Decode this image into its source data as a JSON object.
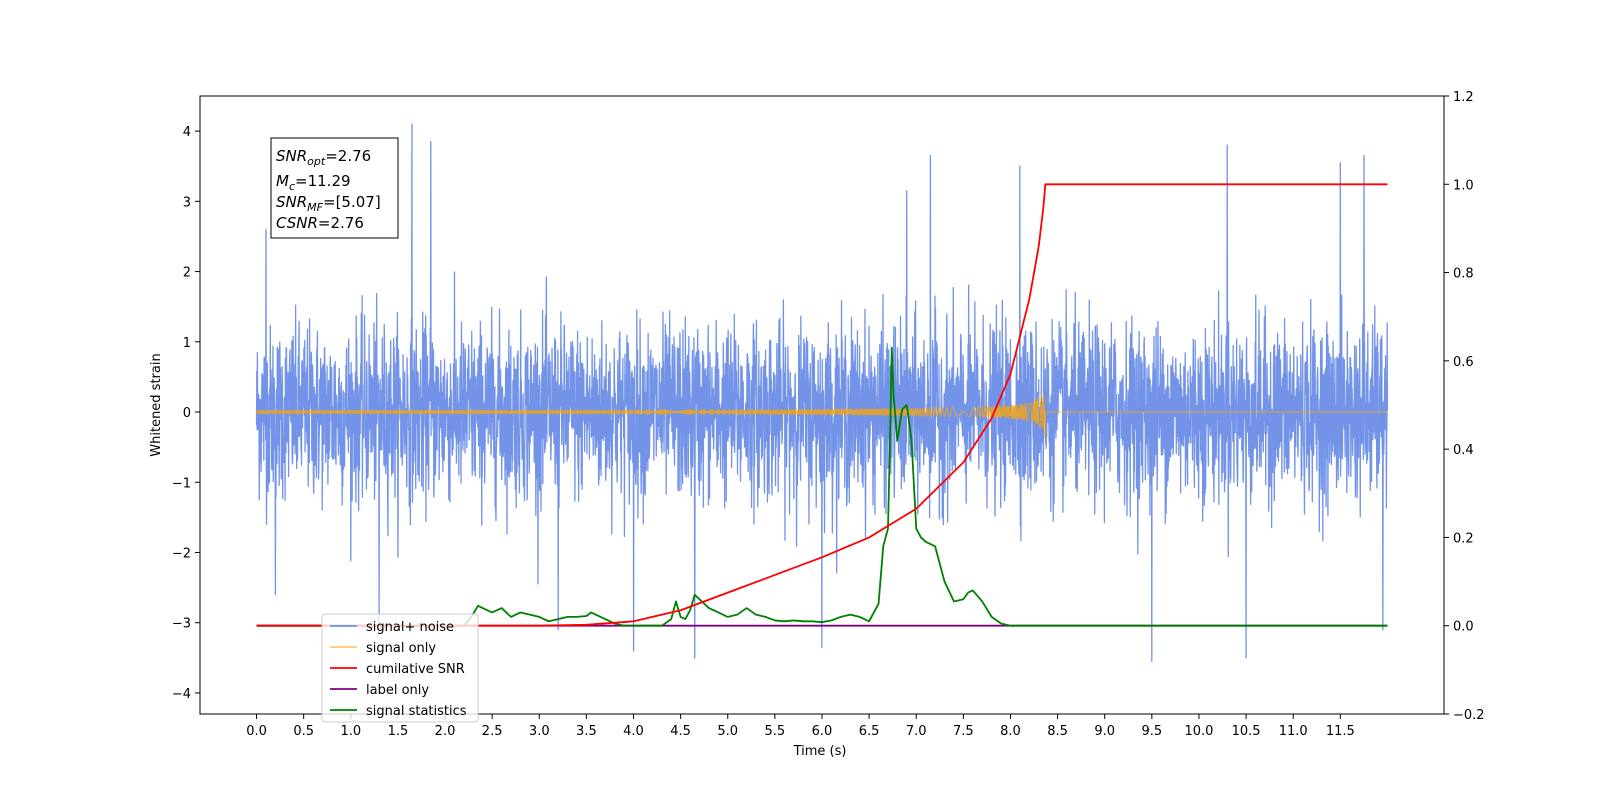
{
  "chart_data": {
    "type": "line",
    "xlabel": "Time (s)",
    "ylabel": "Whitened strain",
    "xlim": [
      -0.6,
      12.6
    ],
    "ylim": [
      -4.3,
      4.5
    ],
    "ylim_right": [
      -0.2,
      1.2
    ],
    "x_ticks": [
      0.0,
      0.5,
      1.0,
      1.5,
      2.0,
      2.5,
      3.0,
      3.5,
      4.0,
      4.5,
      5.0,
      5.5,
      6.0,
      6.5,
      7.0,
      7.5,
      8.0,
      8.5,
      9.0,
      9.5,
      10.0,
      10.5,
      11.0,
      11.5
    ],
    "x_tick_labels": [
      "0.0",
      "0.5",
      "1.0",
      "1.5",
      "2.0",
      "2.5",
      "3.0",
      "3.5",
      "4.0",
      "4.5",
      "5.0",
      "5.5",
      "6.0",
      "6.5",
      "7.0",
      "7.5",
      "8.0",
      "8.5",
      "9.0",
      "9.5",
      "10.0",
      "10.5",
      "11.0",
      "11.5"
    ],
    "y_ticks": [
      -4,
      -3,
      -2,
      -1,
      0,
      1,
      2,
      3,
      4
    ],
    "y_tick_labels": [
      "−4",
      "−3",
      "−2",
      "−1",
      "0",
      "1",
      "2",
      "3",
      "4"
    ],
    "y_ticks_right": [
      -0.2,
      0.0,
      0.2,
      0.4,
      0.6,
      0.8,
      1.0,
      1.2
    ],
    "y_tick_labels_right": [
      "−0.2",
      "0.0",
      "0.2",
      "0.4",
      "0.6",
      "0.8",
      "1.0",
      "1.2"
    ],
    "annotation": {
      "snr_opt": "2.76",
      "mc": "11.29",
      "snr_mf": "[5.07]",
      "csnr": "2.76"
    },
    "legend_position": "lower-left",
    "series": [
      {
        "name": "signal+ noise",
        "axis": "left",
        "color": "#7293e8",
        "style": "noise",
        "x_range": [
          0.0,
          12.0
        ],
        "typical_range": [
          -1.4,
          1.4
        ],
        "spikes": [
          {
            "x": 0.1,
            "y": 2.6
          },
          {
            "x": 0.2,
            "y": -2.6
          },
          {
            "x": 1.3,
            "y": -3.1
          },
          {
            "x": 1.65,
            "y": 4.1
          },
          {
            "x": 1.85,
            "y": 3.85
          },
          {
            "x": 3.2,
            "y": -3.1
          },
          {
            "x": 4.0,
            "y": -3.4
          },
          {
            "x": 4.65,
            "y": -3.5
          },
          {
            "x": 6.0,
            "y": -3.35
          },
          {
            "x": 6.9,
            "y": 3.15
          },
          {
            "x": 7.15,
            "y": 3.65
          },
          {
            "x": 8.1,
            "y": 3.5
          },
          {
            "x": 9.5,
            "y": -3.55
          },
          {
            "x": 10.3,
            "y": 3.8
          },
          {
            "x": 10.5,
            "y": -3.5
          },
          {
            "x": 11.5,
            "y": 3.55
          },
          {
            "x": 11.75,
            "y": 3.65
          },
          {
            "x": 11.95,
            "y": -3.1
          }
        ]
      },
      {
        "name": "signal only",
        "axis": "left",
        "color": "#ffa500",
        "style": "chirp",
        "x_range": [
          0.0,
          12.0
        ],
        "merger_time": 8.37,
        "peak_amplitude": 0.38
      },
      {
        "name": "cumilative SNR",
        "axis": "right",
        "color": "#ff0000",
        "x": [
          0.0,
          3.0,
          3.5,
          4.0,
          4.5,
          5.0,
          5.5,
          6.0,
          6.5,
          7.0,
          7.5,
          7.8,
          8.0,
          8.2,
          8.3,
          8.35,
          8.37,
          12.0
        ],
        "y": [
          0.0,
          0.0,
          0.002,
          0.01,
          0.035,
          0.075,
          0.115,
          0.155,
          0.2,
          0.265,
          0.37,
          0.47,
          0.57,
          0.74,
          0.86,
          0.95,
          1.0,
          1.0
        ]
      },
      {
        "name": "label only",
        "axis": "right",
        "color": "#800080",
        "x": [
          0.0,
          12.0
        ],
        "y": [
          0.0,
          0.0
        ]
      },
      {
        "name": "signal statistics",
        "axis": "right",
        "color": "#008000",
        "x": [
          0.0,
          2.2,
          2.28,
          2.35,
          2.45,
          2.5,
          2.6,
          2.7,
          2.8,
          2.9,
          3.0,
          3.1,
          3.2,
          3.3,
          3.4,
          3.5,
          3.55,
          3.6,
          3.7,
          3.8,
          3.9,
          4.0,
          4.1,
          4.2,
          4.3,
          4.4,
          4.45,
          4.5,
          4.55,
          4.6,
          4.65,
          4.7,
          4.8,
          4.9,
          5.0,
          5.1,
          5.2,
          5.3,
          5.4,
          5.5,
          5.6,
          5.7,
          5.8,
          5.9,
          6.0,
          6.1,
          6.2,
          6.3,
          6.4,
          6.5,
          6.6,
          6.65,
          6.7,
          6.72,
          6.74,
          6.76,
          6.8,
          6.85,
          6.9,
          6.95,
          7.0,
          7.05,
          7.1,
          7.2,
          7.3,
          7.4,
          7.5,
          7.55,
          7.6,
          7.7,
          7.8,
          7.9,
          8.0,
          8.1,
          8.2,
          8.3,
          12.0
        ],
        "y": [
          0.0,
          0.0,
          0.02,
          0.045,
          0.035,
          0.03,
          0.04,
          0.02,
          0.03,
          0.025,
          0.02,
          0.01,
          0.015,
          0.02,
          0.02,
          0.022,
          0.03,
          0.025,
          0.015,
          0.005,
          0.0,
          0.0,
          0.0,
          0.0,
          0.0,
          0.015,
          0.055,
          0.02,
          0.015,
          0.035,
          0.07,
          0.06,
          0.04,
          0.03,
          0.02,
          0.025,
          0.04,
          0.025,
          0.02,
          0.012,
          0.01,
          0.012,
          0.01,
          0.01,
          0.008,
          0.012,
          0.02,
          0.025,
          0.02,
          0.01,
          0.05,
          0.18,
          0.22,
          0.4,
          0.63,
          0.52,
          0.42,
          0.49,
          0.5,
          0.42,
          0.22,
          0.2,
          0.19,
          0.18,
          0.1,
          0.055,
          0.06,
          0.075,
          0.08,
          0.055,
          0.02,
          0.005,
          0.0,
          0.0,
          0.0,
          0.0,
          0.0
        ]
      }
    ]
  }
}
